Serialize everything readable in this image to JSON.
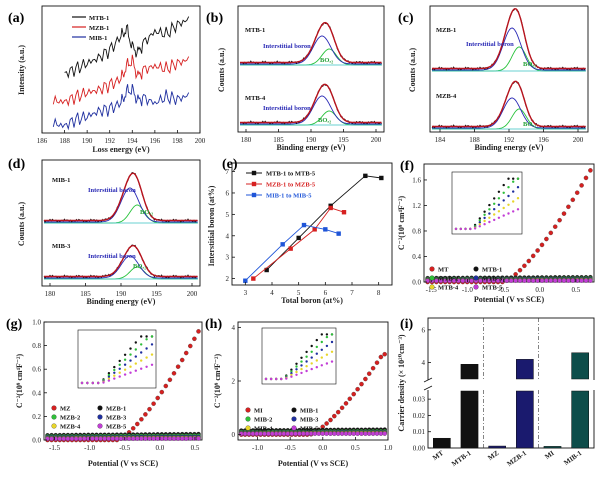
{
  "panels": {
    "a": {
      "label": "(a)",
      "xlabel": "Loss energy (eV)",
      "ylabel": "Intensity (a.u.)",
      "xticks": [
        "186",
        "188",
        "190",
        "192",
        "194",
        "196",
        "198",
        "200"
      ],
      "legend": [
        {
          "name": "MTB-1",
          "color": "#111111"
        },
        {
          "name": "MZB-1",
          "color": "#d62020"
        },
        {
          "name": "MIB-1",
          "color": "#1f2f9f"
        }
      ]
    },
    "b": {
      "label": "(b)",
      "xlabel": "Binding energy (eV)",
      "ylabel": "Counts (a.u.)",
      "xticks": [
        "180",
        "185",
        "190",
        "195",
        "200"
      ],
      "sample_top": "MTB-1",
      "sample_bottom": "MTB-4",
      "annotation": "Interstitial boron",
      "bo_label": "BOₓ₂"
    },
    "c": {
      "label": "(c)",
      "xlabel": "Binding energy (eV)",
      "ylabel": "Counts (a.u.)",
      "xticks": [
        "184",
        "188",
        "192",
        "196",
        "200"
      ],
      "sample_top": "MZB-1",
      "sample_bottom": "MZB-4",
      "annotation": "Interstitial boron",
      "bo_label": "BOₓ₂"
    },
    "d": {
      "label": "(d)",
      "xlabel": "Binding energy (eV)",
      "ylabel": "Counts (a.u.)",
      "xticks": [
        "180",
        "185",
        "190",
        "195",
        "200"
      ],
      "sample_top": "MIB-1",
      "sample_bottom": "MIB-3",
      "annotation": "Interstitial boron",
      "bo_label": "BOₓ₂"
    },
    "e": {
      "label": "(e)",
      "xlabel": "Total boron (at%)",
      "ylabel": "Interstitial boron (at%)",
      "xticks": [
        "3",
        "4",
        "5",
        "6",
        "7",
        "8"
      ],
      "yticks": [
        "2",
        "3",
        "4",
        "5",
        "6",
        "7"
      ]
    },
    "f": {
      "label": "(f)",
      "xlabel": "Potential (V vs SCE)",
      "ylabel": "C⁻²(10⁹ cm⁴F⁻²)",
      "xticks": [
        "-1.5",
        "-1.0",
        "-0.5",
        "0.0",
        "0.5"
      ],
      "yticks": [
        "0.0",
        "0.4",
        "0.8",
        "1.2",
        "1.6"
      ],
      "legend": [
        {
          "name": "MT",
          "color": "#d62020"
        },
        {
          "name": "MTB-1",
          "color": "#111111"
        },
        {
          "name": "MTB-2",
          "color": "#2fbf3a"
        },
        {
          "name": "MTB-3",
          "color": "#1f2f9f"
        },
        {
          "name": "MTB-4",
          "color": "#e7d52a"
        },
        {
          "name": "MTB-5",
          "color": "#c23dd6"
        }
      ]
    },
    "g": {
      "label": "(g)",
      "xlabel": "Potential (V vs SCE)",
      "ylabel": "C⁻²(10⁹ cm⁴F⁻²)",
      "xticks": [
        "-1.5",
        "-1.0",
        "-0.5",
        "0.0",
        "0.5"
      ],
      "yticks": [
        "0.0",
        "0.2",
        "0.4",
        "0.6",
        "0.8",
        "1.0"
      ],
      "legend": [
        {
          "name": "MZ",
          "color": "#d62020"
        },
        {
          "name": "MZB-1",
          "color": "#111111"
        },
        {
          "name": "MZB-2",
          "color": "#2fbf3a"
        },
        {
          "name": "MZB-3",
          "color": "#1f2f9f"
        },
        {
          "name": "MZB-4",
          "color": "#e7d52a"
        },
        {
          "name": "MZB-5",
          "color": "#c23dd6"
        }
      ]
    },
    "h": {
      "label": "(h)",
      "xlabel": "Potential (V vs SCE)",
      "ylabel": "C⁻²(10⁹ cm⁴F⁻²)",
      "xticks": [
        "-1.0",
        "-0.5",
        "0.0",
        "0.5",
        "1.0"
      ],
      "yticks": [
        "0",
        "2",
        "4"
      ],
      "legend": [
        {
          "name": "MI",
          "color": "#d62020"
        },
        {
          "name": "MIB-1",
          "color": "#111111"
        },
        {
          "name": "MIB-2",
          "color": "#2fbf3a"
        },
        {
          "name": "MIB-3",
          "color": "#1f2f9f"
        },
        {
          "name": "MIB-4",
          "color": "#e7d52a"
        },
        {
          "name": "MIB-5",
          "color": "#c23dd6"
        }
      ]
    },
    "i": {
      "label": "(i)",
      "ylabel": "Carrier density (× 10²⁰cm⁻³)",
      "yticks_low": [
        "0.00",
        "0.01",
        "0.02",
        "0.03"
      ],
      "yticks_high": [
        "4",
        "6"
      ],
      "categories": [
        "MT",
        "MTB-1",
        "MZ",
        "MZB-1",
        "MI",
        "MIB-1"
      ]
    }
  },
  "chart_data": [
    {
      "type": "line",
      "panel": "a",
      "title": "",
      "xlabel": "Loss energy (eV)",
      "ylabel": "Intensity (a.u.)",
      "xlim": [
        186,
        200
      ],
      "series": [
        {
          "name": "MTB-1",
          "color": "#111111",
          "x": [
            188,
            189,
            190,
            191,
            192,
            193,
            193.5,
            194,
            194.5,
            195,
            196,
            197,
            198,
            199
          ],
          "y": [
            4.2,
            4.6,
            5.0,
            5.4,
            6.0,
            7.0,
            7.6,
            6.2,
            5.8,
            6.5,
            7.4,
            7.2,
            7.9,
            8.3
          ]
        },
        {
          "name": "MZB-1",
          "color": "#d62020",
          "x": [
            187,
            188,
            189,
            190,
            191,
            192,
            193,
            193.5,
            194,
            194.5,
            195,
            196,
            197,
            198,
            199
          ],
          "y": [
            2.2,
            2.1,
            2.5,
            2.8,
            3.0,
            3.4,
            3.8,
            4.8,
            5.2,
            4.0,
            4.5,
            4.8,
            4.6,
            5.0,
            5.3
          ]
        },
        {
          "name": "MIB-1",
          "color": "#1f2f9f",
          "x": [
            187,
            188,
            189,
            190,
            191,
            192,
            193,
            193.5,
            194,
            194.5,
            195,
            196,
            197,
            198,
            199
          ],
          "y": [
            0.5,
            0.3,
            0.8,
            1.0,
            1.4,
            1.6,
            2.0,
            2.9,
            3.0,
            2.2,
            2.4,
            2.0,
            2.5,
            2.3,
            2.6
          ]
        }
      ]
    },
    {
      "type": "line",
      "panel": "e",
      "title": "",
      "xlabel": "Total boron (at%)",
      "ylabel": "Interstitial boron (at%)",
      "xlim": [
        2.5,
        8.5
      ],
      "ylim": [
        1.7,
        7.4
      ],
      "series": [
        {
          "name": "MTB-1 to MTB-5",
          "color": "#111111",
          "marker": "square",
          "x": [
            3.8,
            5.0,
            6.2,
            7.5,
            8.1
          ],
          "y": [
            2.4,
            3.9,
            5.4,
            6.8,
            6.7
          ]
        },
        {
          "name": "MZB-1 to MZB-5",
          "color": "#d62020",
          "marker": "square",
          "x": [
            3.3,
            4.7,
            5.6,
            6.2,
            6.7
          ],
          "y": [
            2.0,
            3.4,
            4.3,
            5.3,
            5.1
          ]
        },
        {
          "name": "MIB-1 to MIB-5",
          "color": "#1f55d8",
          "marker": "square",
          "x": [
            3.0,
            4.4,
            5.2,
            6.0,
            6.5
          ],
          "y": [
            1.9,
            3.6,
            4.5,
            4.3,
            4.1
          ]
        }
      ]
    },
    {
      "type": "scatter",
      "panel": "f",
      "xlabel": "Potential (V vs SCE)",
      "ylabel": "C-2 (10^9 cm^4 F^-2)",
      "xlim": [
        -1.6,
        0.75
      ],
      "ylim": [
        0,
        1.85
      ],
      "series": [
        {
          "name": "MT",
          "color": "#d62020",
          "mode": "sigmoid",
          "v0": -0.45,
          "slope": 0.0,
          "k": 0.0,
          "rise": 1.75,
          "rise_start": -0.5,
          "rise_end": 0.7
        },
        {
          "name": "MTB-1",
          "color": "#111111",
          "level": 0.06
        },
        {
          "name": "MTB-2",
          "color": "#2fbf3a",
          "level": 0.045
        },
        {
          "name": "MTB-3",
          "color": "#1f2f9f",
          "level": 0.035
        },
        {
          "name": "MTB-4",
          "color": "#e7d52a",
          "level": 0.025
        },
        {
          "name": "MTB-5",
          "color": "#c23dd6",
          "level": 0.018
        }
      ]
    },
    {
      "type": "scatter",
      "panel": "g",
      "xlabel": "Potential (V vs SCE)",
      "ylabel": "C-2 (10^9 cm^4 F^-2)",
      "xlim": [
        -1.65,
        0.6
      ],
      "ylim": [
        0,
        1.0
      ],
      "series": [
        {
          "name": "MZ",
          "color": "#d62020",
          "rise": 0.92,
          "rise_start": -0.6,
          "rise_end": 0.55
        },
        {
          "name": "MZB-1",
          "color": "#111111",
          "level": 0.04
        },
        {
          "name": "MZB-2",
          "color": "#2fbf3a",
          "level": 0.03
        },
        {
          "name": "MZB-3",
          "color": "#1f2f9f",
          "level": 0.022
        },
        {
          "name": "MZB-4",
          "color": "#e7d52a",
          "level": 0.015
        },
        {
          "name": "MZB-5",
          "color": "#c23dd6",
          "level": 0.01
        }
      ]
    },
    {
      "type": "scatter",
      "panel": "h",
      "xlabel": "Potential (V vs SCE)",
      "ylabel": "C-2 (10^9 cm^4 F^-2)",
      "xlim": [
        -1.3,
        1.0
      ],
      "ylim": [
        -0.2,
        4.2
      ],
      "series": [
        {
          "name": "MI",
          "color": "#d62020",
          "rise": 3.0,
          "rise_start": -0.2,
          "rise_end": 0.92
        },
        {
          "name": "MIB-1",
          "color": "#111111",
          "level": 0.15
        },
        {
          "name": "MIB-2",
          "color": "#2fbf3a",
          "level": 0.1
        },
        {
          "name": "MIB-3",
          "color": "#1f2f9f",
          "level": 0.07
        },
        {
          "name": "MIB-4",
          "color": "#e7d52a",
          "level": 0.05
        },
        {
          "name": "MIB-5",
          "color": "#c23dd6",
          "level": 0.03
        }
      ]
    },
    {
      "type": "bar",
      "panel": "i",
      "title": "",
      "ylabel": "Carrier density (x 10^20 cm^-3)",
      "categories": [
        "MT",
        "MTB-1",
        "MZ",
        "MZB-1",
        "MI",
        "MIB-1"
      ],
      "values": [
        0.006,
        3.9,
        0.0012,
        4.2,
        0.001,
        4.6
      ],
      "colors": [
        "#111111",
        "#111111",
        "#1a1a6e",
        "#1a1a6e",
        "#0e4d4a",
        "#0e4d4a"
      ],
      "axis_break": [
        0.035,
        3.0
      ]
    }
  ]
}
